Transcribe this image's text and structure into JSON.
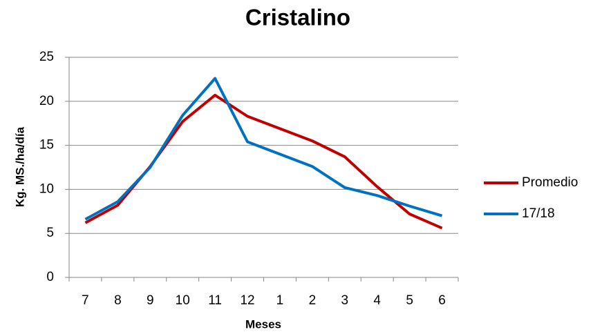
{
  "chart_data": {
    "type": "line",
    "title": "Cristalino",
    "x_label": "Meses",
    "y_label": "Kg. MS./ha/día",
    "categories": [
      "7",
      "8",
      "9",
      "10",
      "11",
      "12",
      "1",
      "2",
      "3",
      "4",
      "5",
      "6"
    ],
    "series": [
      {
        "name": "Promedio",
        "color": "#c00000",
        "values": [
          6.2,
          8.2,
          12.6,
          17.7,
          20.7,
          18.3,
          16.9,
          15.5,
          13.7,
          10.3,
          7.2,
          5.6
        ]
      },
      {
        "name": "17/18",
        "color": "#0070c0",
        "values": [
          6.6,
          8.6,
          12.5,
          18.4,
          22.6,
          15.4,
          14.0,
          12.6,
          10.2,
          9.3,
          8.1,
          7.0
        ]
      }
    ],
    "ylim": [
      0,
      25
    ],
    "yticks": [
      0,
      5,
      10,
      15,
      20,
      25
    ],
    "grid": true,
    "legend": "right"
  }
}
